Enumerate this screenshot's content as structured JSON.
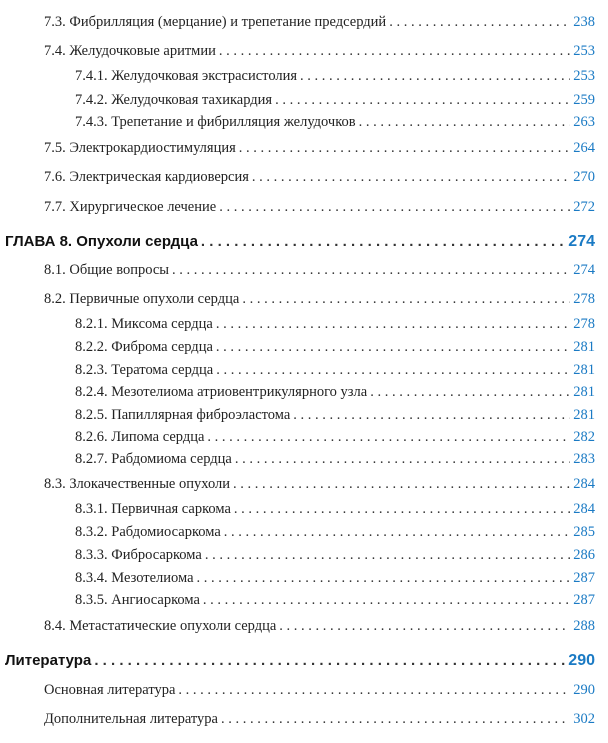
{
  "accent_color": "#1a7ac4",
  "entries": [
    {
      "level": 1,
      "title": "7.3. Фибрилляция (мерцание) и трепетание предсердий",
      "page": "238"
    },
    {
      "level": 1,
      "title": "7.4. Желудочковые аритмии",
      "page": "253"
    },
    {
      "level": 2,
      "title": "7.4.1. Желудочковая экстрасистолия",
      "page": "253"
    },
    {
      "level": 2,
      "title": "7.4.2. Желудочковая тахикардия",
      "page": "259"
    },
    {
      "level": 2,
      "title": "7.4.3. Трепетание и фибрилляция желудочков",
      "page": "263"
    },
    {
      "level": 1,
      "title": "7.5. Электрокардиостимуляция",
      "page": "264"
    },
    {
      "level": 1,
      "title": "7.6. Электрическая кардиоверсия",
      "page": "270"
    },
    {
      "level": 1,
      "title": "7.7. Хирургическое лечение",
      "page": "272"
    },
    {
      "level": 0,
      "title": "ГЛАВА 8. Опухоли сердца",
      "page": "274"
    },
    {
      "level": 1,
      "title": "8.1. Общие вопросы",
      "page": "274"
    },
    {
      "level": 1,
      "title": "8.2. Первичные опухоли сердца",
      "page": "278"
    },
    {
      "level": 2,
      "title": "8.2.1. Миксома сердца",
      "page": "278"
    },
    {
      "level": 2,
      "title": "8.2.2. Фиброма сердца",
      "page": "281"
    },
    {
      "level": 2,
      "title": "8.2.3. Тератома сердца",
      "page": "281"
    },
    {
      "level": 2,
      "title": "8.2.4. Мезотелиома атриовентрикулярного узла",
      "page": "281"
    },
    {
      "level": 2,
      "title": "8.2.5. Папиллярная фиброэластома",
      "page": "281"
    },
    {
      "level": 2,
      "title": "8.2.6. Липома сердца",
      "page": "282"
    },
    {
      "level": 2,
      "title": "8.2.7. Рабдомиома сердца",
      "page": "283"
    },
    {
      "level": 1,
      "title": "8.3. Злокачественные опухоли",
      "page": "284"
    },
    {
      "level": 2,
      "title": "8.3.1. Первичная саркома",
      "page": "284"
    },
    {
      "level": 2,
      "title": "8.3.2. Рабдомиосаркома",
      "page": "285"
    },
    {
      "level": 2,
      "title": "8.3.3. Фибросаркома",
      "page": "286"
    },
    {
      "level": 2,
      "title": "8.3.4. Мезотелиома",
      "page": "287"
    },
    {
      "level": 2,
      "title": "8.3.5. Ангиосаркома",
      "page": "287"
    },
    {
      "level": 1,
      "title": "8.4. Метастатические опухоли сердца",
      "page": "288"
    },
    {
      "level": 0,
      "title": "Литература",
      "page": "290"
    },
    {
      "level": 1,
      "title": "Основная литература",
      "page": "290"
    },
    {
      "level": 1,
      "title": "Дополнительная литература",
      "page": "302"
    }
  ]
}
